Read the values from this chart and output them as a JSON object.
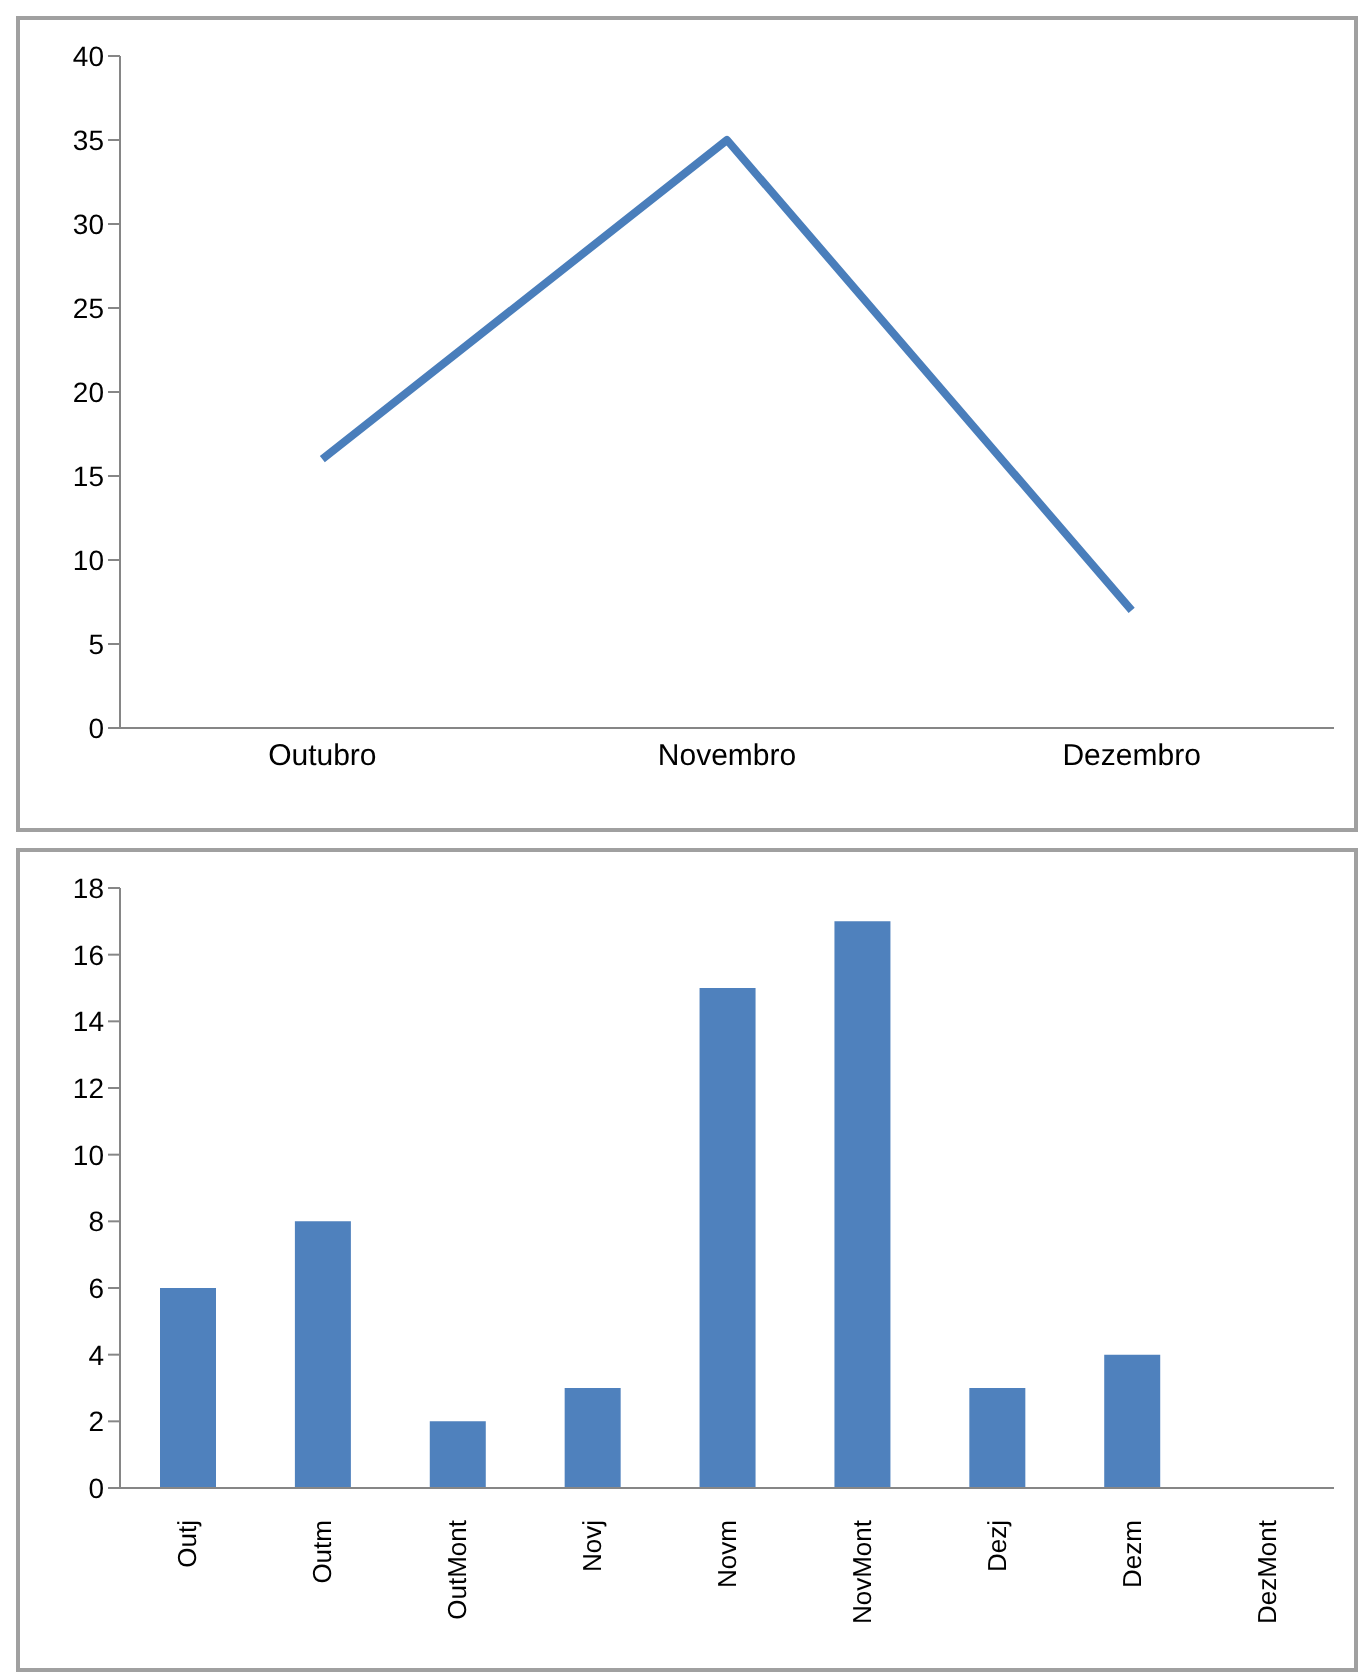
{
  "chart_data": [
    {
      "type": "line",
      "categories": [
        "Outubro",
        "Novembro",
        "Dezembro"
      ],
      "series": [
        {
          "color": "#4a7ebb",
          "values": [
            16,
            35,
            7
          ]
        }
      ],
      "ylim": [
        0,
        40
      ],
      "yticks": [
        0,
        5,
        10,
        15,
        20,
        25,
        30,
        35,
        40
      ],
      "grid": false,
      "legend": false,
      "marker": "none"
    },
    {
      "type": "bar",
      "categories": [
        "Outj",
        "Outm",
        "OutMont",
        "Novj",
        "Novm",
        "NovMont",
        "Dezj",
        "Dezm",
        "DezMont"
      ],
      "series": [
        {
          "color": "#4f81bd",
          "values": [
            6,
            8,
            2,
            3,
            15,
            17,
            3,
            4,
            0
          ]
        }
      ],
      "ylim": [
        0,
        18
      ],
      "yticks": [
        0,
        2,
        4,
        6,
        8,
        10,
        12,
        14,
        16,
        18
      ],
      "grid": false,
      "legend": false
    }
  ]
}
